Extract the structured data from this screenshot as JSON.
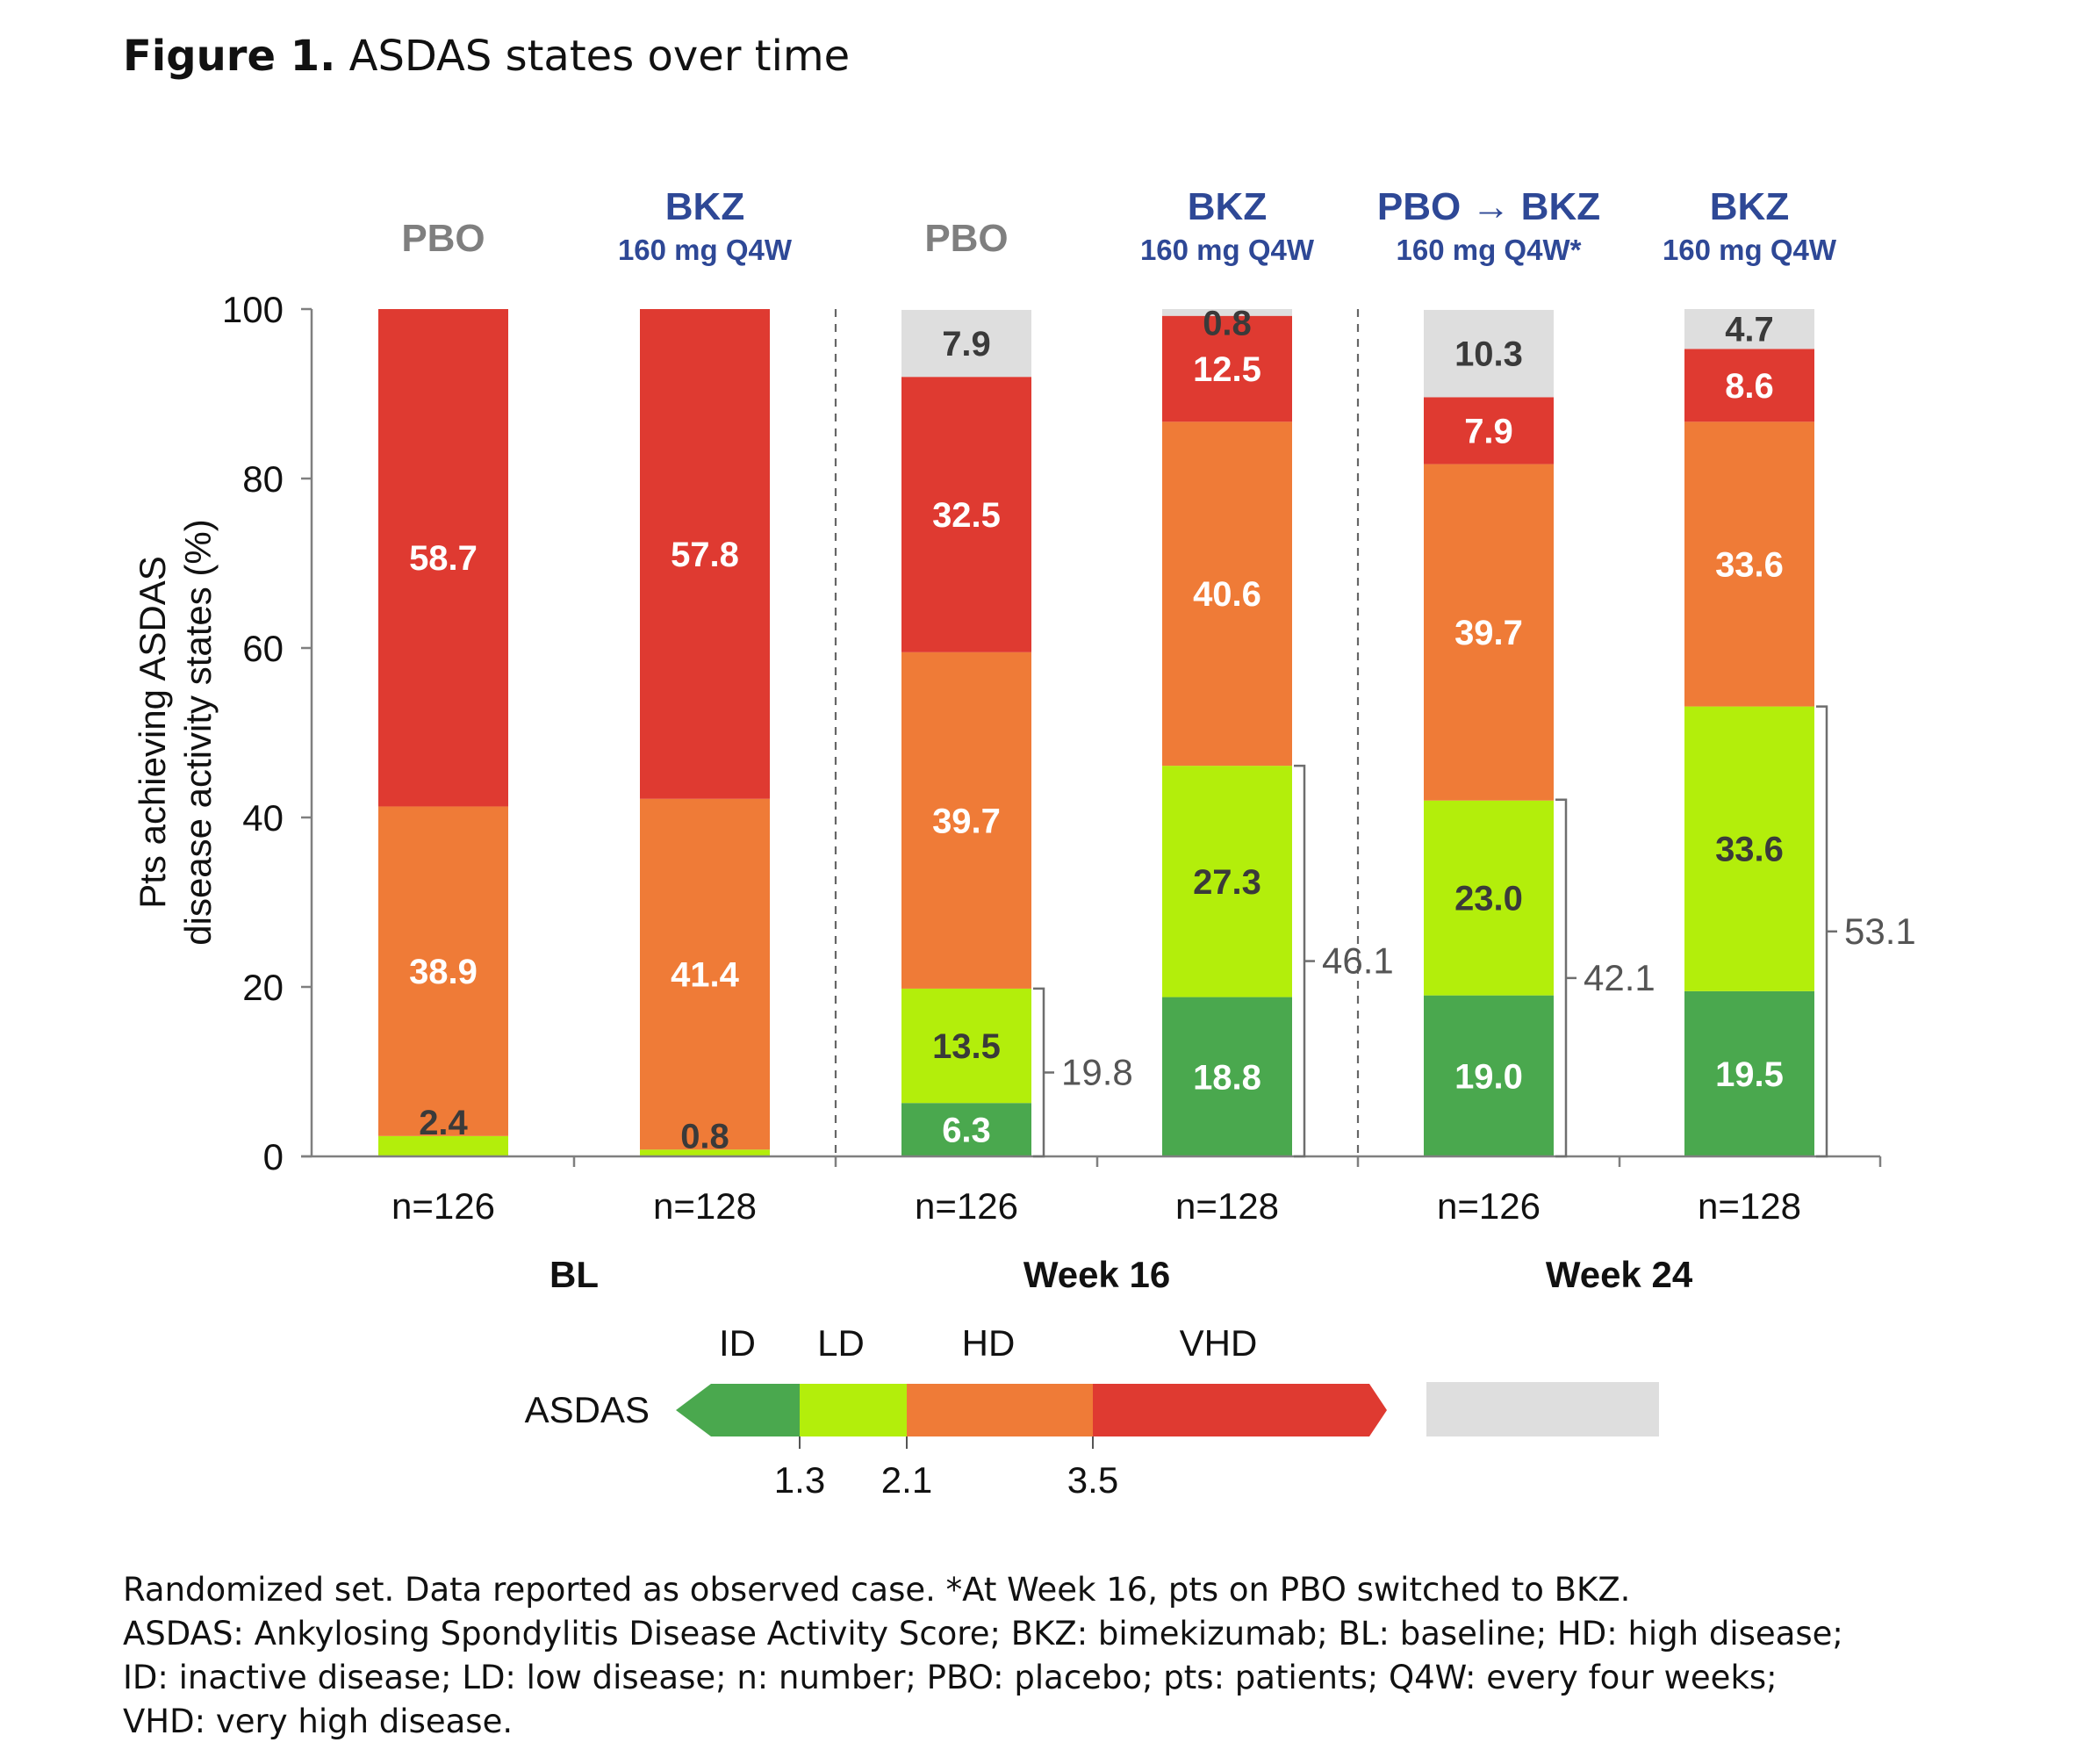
{
  "figure": {
    "title_bold": "Figure 1.",
    "title_rest": "ASDAS states over time"
  },
  "chart_data": {
    "type": "bar",
    "stacked": true,
    "ylabel_line1": "Pts achieving ASDAS",
    "ylabel_line2": "disease activity states (%)",
    "ylim": [
      0,
      100
    ],
    "yticks": [
      "0",
      "20",
      "40",
      "60",
      "80",
      "100"
    ],
    "grid": false,
    "state_order": [
      "ID",
      "LD",
      "HD",
      "VHD",
      "Missing"
    ],
    "colors": {
      "ID": "#4aa84e",
      "LD": "#b3ee0b",
      "HD": "#ef7b37",
      "VHD": "#df3a31",
      "Missing": "#dedede",
      "bkz_header": "#2e4896",
      "pbo_header": "#7f7f7f",
      "bracket": "#6e6e6e",
      "axis": "#7f7f7f"
    },
    "groups": [
      {
        "label": "BL",
        "bars": [
          0,
          1
        ]
      },
      {
        "label": "Week 16",
        "bars": [
          2,
          3
        ]
      },
      {
        "label": "Week 24",
        "bars": [
          4,
          5
        ]
      }
    ],
    "bars": [
      {
        "header_main": "PBO",
        "header_sub": "",
        "header_style": "pbo",
        "n": "n=126",
        "segments": [
          {
            "state": "LD",
            "value": 2.4,
            "label": "2.4"
          },
          {
            "state": "HD",
            "value": 38.9,
            "label": "38.9"
          },
          {
            "state": "VHD",
            "value": 58.7,
            "label": "58.7"
          }
        ],
        "bracket": null
      },
      {
        "header_main": "BKZ",
        "header_sub": "160 mg Q4W",
        "header_style": "bkz",
        "n": "n=128",
        "segments": [
          {
            "state": "LD",
            "value": 0.8,
            "label": "0.8"
          },
          {
            "state": "HD",
            "value": 41.4,
            "label": "41.4"
          },
          {
            "state": "VHD",
            "value": 57.8,
            "label": "57.8"
          }
        ],
        "bracket": null
      },
      {
        "header_main": "PBO",
        "header_sub": "",
        "header_style": "pbo",
        "n": "n=126",
        "segments": [
          {
            "state": "ID",
            "value": 6.3,
            "label": "6.3"
          },
          {
            "state": "LD",
            "value": 13.5,
            "label": "13.5"
          },
          {
            "state": "HD",
            "value": 39.7,
            "label": "39.7"
          },
          {
            "state": "VHD",
            "value": 32.5,
            "label": "32.5"
          },
          {
            "state": "Missing",
            "value": 7.9,
            "label": "7.9"
          }
        ],
        "bracket": {
          "value": 19.8,
          "label": "19.8"
        }
      },
      {
        "header_main": "BKZ",
        "header_sub": "160 mg Q4W",
        "header_style": "bkz",
        "n": "n=128",
        "segments": [
          {
            "state": "ID",
            "value": 18.8,
            "label": "18.8"
          },
          {
            "state": "LD",
            "value": 27.3,
            "label": "27.3"
          },
          {
            "state": "HD",
            "value": 40.6,
            "label": "40.6"
          },
          {
            "state": "VHD",
            "value": 12.5,
            "label": "12.5"
          },
          {
            "state": "Missing",
            "value": 0.8,
            "label": "0.8"
          }
        ],
        "bracket": {
          "value": 46.1,
          "label": "46.1"
        }
      },
      {
        "header_main": "PBO → BKZ",
        "header_sub": "160 mg Q4W*",
        "header_style": "bkz",
        "n": "n=126",
        "segments": [
          {
            "state": "ID",
            "value": 19.0,
            "label": "19.0"
          },
          {
            "state": "LD",
            "value": 23.0,
            "label": "23.0"
          },
          {
            "state": "HD",
            "value": 39.7,
            "label": "39.7"
          },
          {
            "state": "VHD",
            "value": 7.9,
            "label": "7.9"
          },
          {
            "state": "Missing",
            "value": 10.3,
            "label": "10.3"
          }
        ],
        "bracket": {
          "value": 42.1,
          "label": "42.1"
        }
      },
      {
        "header_main": "BKZ",
        "header_sub": "160 mg Q4W",
        "header_style": "bkz",
        "n": "n=128",
        "segments": [
          {
            "state": "ID",
            "value": 19.5,
            "label": "19.5"
          },
          {
            "state": "LD",
            "value": 33.6,
            "label": "33.6"
          },
          {
            "state": "HD",
            "value": 33.6,
            "label": "33.6"
          },
          {
            "state": "VHD",
            "value": 8.6,
            "label": "8.6"
          },
          {
            "state": "Missing",
            "value": 4.7,
            "label": "4.7"
          }
        ],
        "bracket": {
          "value": 53.1,
          "label": "53.1"
        }
      }
    ]
  },
  "legend": {
    "title": "ASDAS",
    "categories": [
      "ID",
      "LD",
      "HD",
      "VHD"
    ],
    "thresholds": [
      "1.3",
      "2.1",
      "3.5"
    ]
  },
  "footnotes": [
    "Randomized set. Data reported as observed case. *At Week 16, pts on PBO switched to BKZ.",
    "ASDAS: Ankylosing Spondylitis Disease Activity Score; BKZ: bimekizumab; BL: baseline; HD: high disease;",
    "ID: inactive disease; LD: low disease; n: number; PBO: placebo; pts: patients; Q4W: every four weeks;",
    "VHD: very high disease."
  ]
}
